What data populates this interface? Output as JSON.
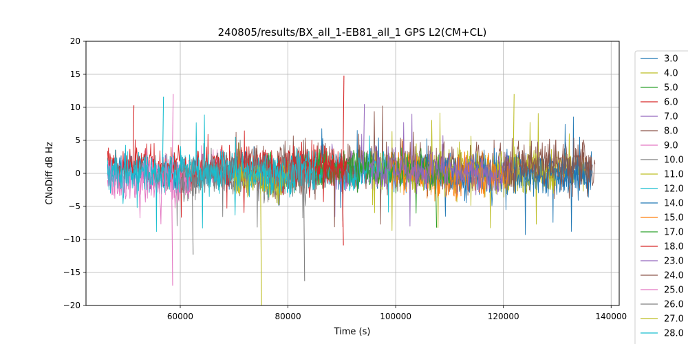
{
  "chart_data": {
    "type": "line",
    "title": "240805/results/BX_all_1-EB81_all_1 GPS L2(CM+CL)",
    "xlabel": "Time (s)",
    "ylabel": "CNoDiff dB Hz",
    "xlim": [
      42500,
      141500
    ],
    "ylim": [
      -20,
      20
    ],
    "xticks": [
      60000,
      80000,
      100000,
      120000,
      140000
    ],
    "xtick_labels": [
      "60000",
      "80000",
      "100000",
      "120000",
      "140000"
    ],
    "yticks": [
      -20,
      -15,
      -10,
      -5,
      0,
      5,
      10,
      15,
      20
    ],
    "ytick_labels": [
      "−20",
      "−15",
      "−10",
      "−5",
      "0",
      "5",
      "10",
      "15",
      "20"
    ],
    "grid": true,
    "legend_position": "right (outside, clipped)",
    "series": [
      {
        "name": "3.0",
        "color": "#1f77b4",
        "x_range": [
          46500,
          136500
        ],
        "mean": 0.3,
        "noise": 1.2
      },
      {
        "name": "4.0",
        "color": "#bcbd22",
        "x_range": [
          95000,
          136000
        ],
        "mean": 0.6,
        "noise": 1.2
      },
      {
        "name": "5.0",
        "color": "#2ca02c",
        "x_range": [
          75000,
          105000
        ],
        "mean": 0.7,
        "noise": 1.3
      },
      {
        "name": "6.0",
        "color": "#d62728",
        "x_range": [
          66000,
          91000
        ],
        "mean": 0.9,
        "noise": 1.4
      },
      {
        "name": "7.0",
        "color": "#9467bd",
        "x_range": [
          88000,
          100000
        ],
        "mean": 1.0,
        "noise": 1.5
      },
      {
        "name": "8.0",
        "color": "#8c564b",
        "x_range": [
          70000,
          137000
        ],
        "mean": 1.2,
        "noise": 1.8
      },
      {
        "name": "9.0",
        "color": "#e377c2",
        "x_range": [
          46500,
          68000
        ],
        "mean": 0.1,
        "noise": 1.5
      },
      {
        "name": "10.0",
        "color": "#7f7f7f",
        "x_range": [
          55000,
          85000
        ],
        "mean": -0.3,
        "noise": 1.6
      },
      {
        "name": "11.0",
        "color": "#bcbd22",
        "x_range": [
          95000,
          130000
        ],
        "mean": 0.4,
        "noise": 1.5
      },
      {
        "name": "12.0",
        "color": "#17becf",
        "x_range": [
          46500,
          100000
        ],
        "mean": 0.5,
        "noise": 1.2
      },
      {
        "name": "14.0",
        "color": "#1f77b4",
        "x_range": [
          104000,
          136500
        ],
        "mean": -0.2,
        "noise": 1.5
      },
      {
        "name": "15.0",
        "color": "#ff7f0e",
        "x_range": [
          99000,
          122000
        ],
        "mean": 0.0,
        "noise": 1.6
      },
      {
        "name": "17.0",
        "color": "#2ca02c",
        "x_range": [
          85000,
          110000
        ],
        "mean": 0.8,
        "noise": 1.3
      },
      {
        "name": "18.0",
        "color": "#d62728",
        "x_range": [
          46500,
          91000
        ],
        "mean": 1.0,
        "noise": 1.5
      },
      {
        "name": "23.0",
        "color": "#9467bd",
        "x_range": [
          95000,
          122000
        ],
        "mean": 0.4,
        "noise": 1.3
      },
      {
        "name": "24.0",
        "color": "#8c564b",
        "x_range": [
          120000,
          136500
        ],
        "mean": 1.5,
        "noise": 1.8
      },
      {
        "name": "25.0",
        "color": "#e377c2",
        "x_range": [
          46500,
          62000
        ],
        "mean": -0.8,
        "noise": 1.8
      },
      {
        "name": "26.0",
        "color": "#7f7f7f",
        "x_range": [
          60000,
          85000
        ],
        "mean": -0.5,
        "noise": 1.6
      },
      {
        "name": "27.0",
        "color": "#bcbd22",
        "x_range": [
          70000,
          80000
        ],
        "mean": -1.0,
        "noise": 1.3
      },
      {
        "name": "28.0",
        "color": "#17becf",
        "x_range": [
          46500,
          85000
        ],
        "mean": 0.2,
        "noise": 1.4
      }
    ],
    "spikes": [
      {
        "x": 58400,
        "y": -17,
        "color": "#e377c2"
      },
      {
        "x": 58500,
        "y": 12,
        "color": "#e377c2"
      },
      {
        "x": 62200,
        "y": -12.3,
        "color": "#7f7f7f"
      },
      {
        "x": 74900,
        "y": -20,
        "color": "#bcbd22"
      },
      {
        "x": 82900,
        "y": -16.3,
        "color": "#7f7f7f"
      },
      {
        "x": 90200,
        "y": 14.8,
        "color": "#d62728"
      },
      {
        "x": 90100,
        "y": -10.9,
        "color": "#d62728"
      },
      {
        "x": 56700,
        "y": 11.6,
        "color": "#17becf"
      },
      {
        "x": 51200,
        "y": 10.3,
        "color": "#d62728"
      },
      {
        "x": 121800,
        "y": 12,
        "color": "#bcbd22"
      },
      {
        "x": 107400,
        "y": -8.2,
        "color": "#2ca02c"
      },
      {
        "x": 94000,
        "y": 10.5,
        "color": "#9467bd"
      }
    ]
  }
}
